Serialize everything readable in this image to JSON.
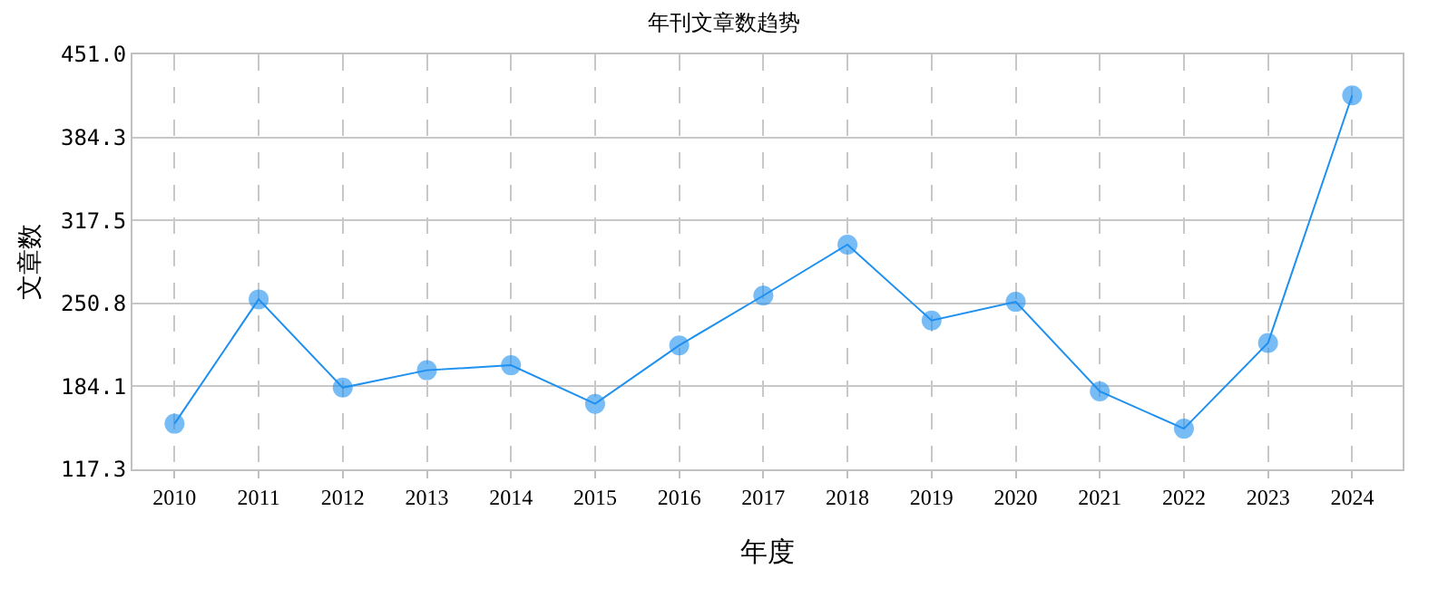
{
  "chart_data": {
    "type": "line",
    "title": "年刊文章数趋势",
    "xlabel": "年度",
    "ylabel": "文章数",
    "categories": [
      "2010",
      "2011",
      "2012",
      "2013",
      "2014",
      "2015",
      "2016",
      "2017",
      "2018",
      "2019",
      "2020",
      "2021",
      "2022",
      "2023",
      "2024"
    ],
    "series": [
      {
        "color": "#1e90f0",
        "values": [
          154,
          254,
          183,
          197,
          201,
          170,
          217,
          257,
          298,
          237,
          252,
          180,
          150,
          219,
          418
        ]
      }
    ],
    "ylim": [
      117.3,
      451.0
    ],
    "yticks": [
      117.3,
      184.1,
      250.8,
      317.5,
      384.3,
      {
        "value": 451.0,
        "label": "451.0"
      }
    ],
    "grid": true,
    "marker": "circle",
    "line_style": "solid"
  }
}
